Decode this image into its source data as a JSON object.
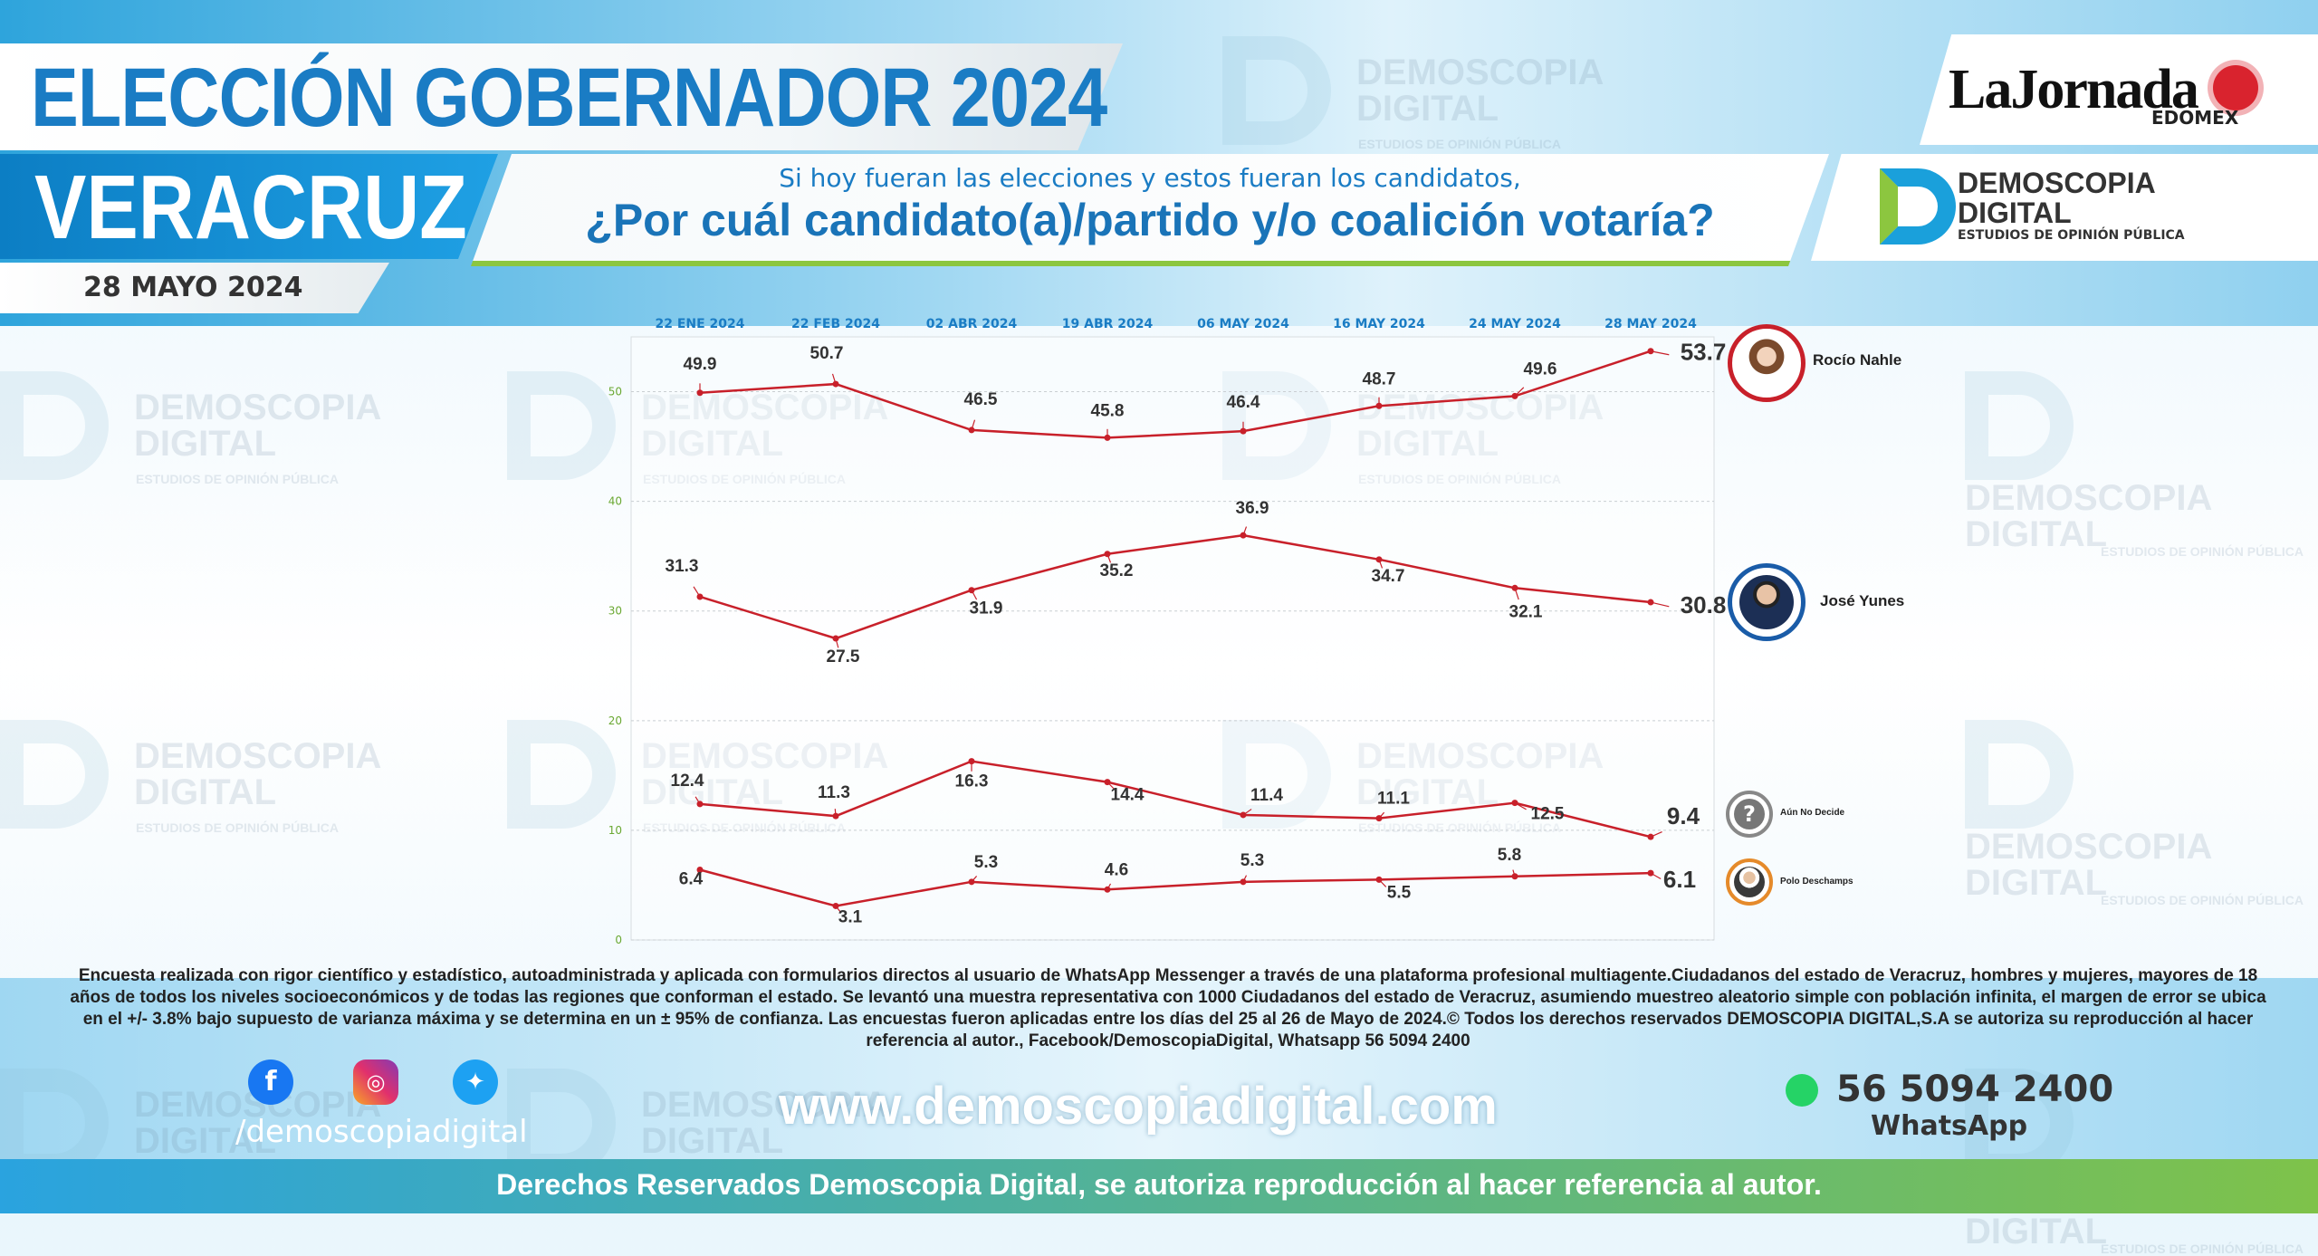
{
  "header": {
    "title": "ELECCIÓN GOBERNADOR 2024",
    "state": "VERACRUZ",
    "date": "28 MAYO 2024",
    "question_sub": "Si hoy fueran las elecciones y estos fueran los candidatos,",
    "question_main": "¿Por cuál candidato(a)/partido y/o coalición votaría?"
  },
  "logos": {
    "jornada": "LaJornada",
    "jornada_sub": "EDOMEX",
    "demoscopia_1": "DEMOSCOPIA",
    "demoscopia_2": "DIGITAL",
    "demoscopia_sub": "ESTUDIOS DE OPINIÓN PÚBLICA"
  },
  "watermark": {
    "line1": "DEMOSCOPIA",
    "line2": "DIGITAL",
    "line3": "ESTUDIOS DE OPINIÓN PÚBLICA"
  },
  "colors": {
    "series_line": "#c8202a",
    "accent_blue": "#1a7cc4",
    "accent_green": "#8cc63f"
  },
  "chart_data": {
    "type": "line",
    "x": [
      "22 ENE 2024",
      "22 FEB 2024",
      "02 ABR 2024",
      "19 ABR 2024",
      "06 MAY 2024",
      "16 MAY 2024",
      "24 MAY 2024",
      "28 MAY 2024"
    ],
    "ylim": [
      0,
      55
    ],
    "yticks": [
      0,
      10,
      20,
      30,
      40,
      50
    ],
    "grid": true,
    "series": [
      {
        "name": "Rocío Nahle",
        "values": [
          49.9,
          50.7,
          46.5,
          45.8,
          46.4,
          48.7,
          49.6,
          53.7
        ]
      },
      {
        "name": "José Yunes",
        "values": [
          31.3,
          27.5,
          31.9,
          35.2,
          36.9,
          34.7,
          32.1,
          30.8
        ]
      },
      {
        "name": "Aún No Decide",
        "values": [
          12.4,
          11.3,
          16.3,
          14.4,
          11.4,
          11.1,
          12.5,
          9.4
        ]
      },
      {
        "name": "Polo Deschamps",
        "values": [
          6.4,
          3.1,
          5.3,
          4.6,
          5.3,
          5.5,
          5.8,
          6.1
        ]
      }
    ],
    "labels": [
      [
        "49.9",
        "50.7",
        "46.5",
        "45.8",
        "46.4",
        "48.7",
        "49.6",
        "53.7"
      ],
      [
        "31.3",
        "27.5",
        "31.9",
        "35.2",
        "36.9",
        "34.7",
        "32.1",
        "30.8"
      ],
      [
        "12.4",
        "11.3",
        "16.3",
        "14.4",
        "11.4",
        "11.1",
        "12.5",
        "9.4"
      ],
      [
        "6.4",
        "3.1",
        "5.3",
        "4.6",
        "5.3",
        "5.5",
        "5.8",
        "6.1"
      ]
    ]
  },
  "footer": {
    "methodology": "Encuesta realizada con rigor científico y estadístico, autoadministrada y aplicada con formularios directos al usuario de WhatsApp Messenger a través de una plataforma profesional multiagente.Ciudadanos del estado de Veracruz, hombres y mujeres, mayores de 18 años de todos los niveles socioeconómicos y de todas las regiones que conforman el estado. Se levantó una muestra representativa con 1000 Ciudadanos del estado de Veracruz, asumiendo muestreo aleatorio simple con población infinita, el margen de error se ubica en el +/- 3.8% bajo supuesto de varianza máxima y se determina en un ± 95% de confianza. Las encuestas fueron aplicadas entre los días del 25 al 26 de Mayo de 2024.© Todos los derechos reservados DEMOSCOPIA DIGITAL,S.A se autoriza su reproducción al hacer referencia al autor., Facebook/DemoscopiaDigital, Whatsapp 56 5094 2400",
    "social_handle": "/demoscopiadigital",
    "website": "www.demoscopiadigital.com",
    "phone": "56 5094 2400",
    "whatsapp_label": "WhatsApp",
    "rights": "Derechos Reservados Demoscopia Digital, se autoriza reproducción al hacer referencia al autor.",
    "social_icons": [
      "facebook-icon",
      "instagram-icon",
      "twitter-icon"
    ]
  }
}
